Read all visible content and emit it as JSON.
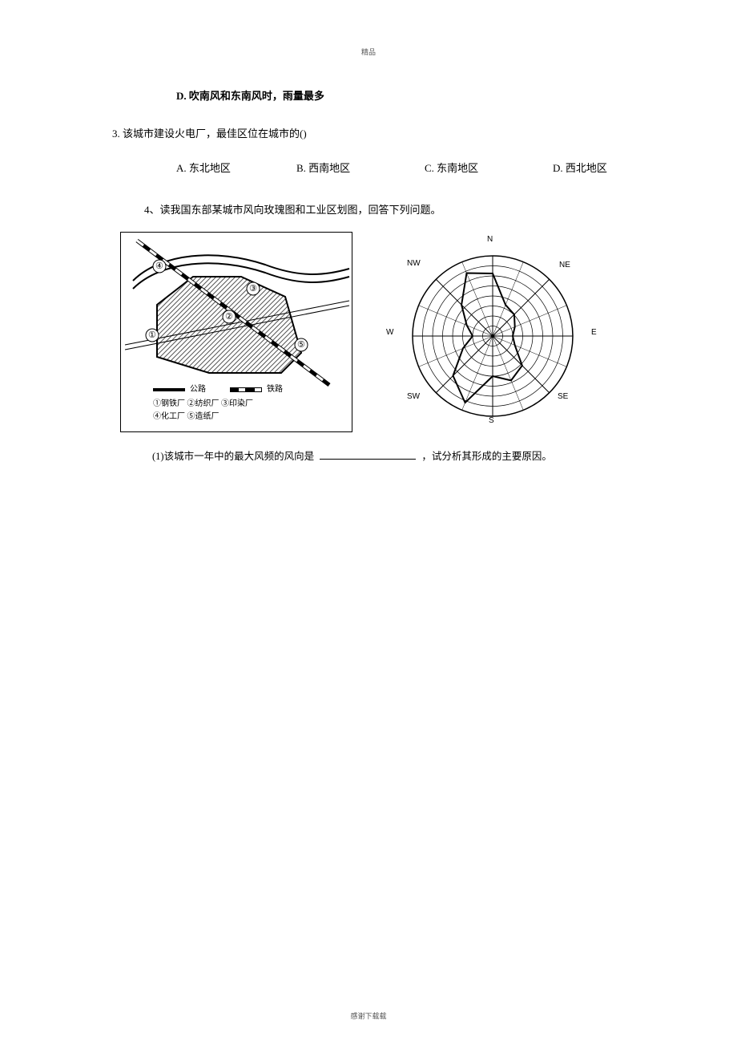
{
  "header": {
    "text": "精品"
  },
  "footer": {
    "text": "感谢下载载"
  },
  "lines": {
    "option_d_prev": "D. 吹南风和东南风时，雨量最多",
    "q3_stem": "3. 该城市建设火电厂，最佳区位在城市的()",
    "q3_opts": {
      "a": "A. 东北地区",
      "b": "B. 西南地区",
      "c": "C. 东南地区",
      "d": "D. 西北地区"
    },
    "q4_stem": "4、读我国东部某城市风向玫瑰图和工业区划图，回答下列问题。",
    "q4_sub1_a": "(1)该城市一年中的最大风频的风向是",
    "q4_sub1_b": "，试分析其形成的主要原因。"
  },
  "fig_left": {
    "legend_road": "公路",
    "legend_rail": "铁路",
    "legend_line2": "①钢铁厂 ②纺织厂 ③印染厂",
    "legend_line3": "④化工厂 ⑤造纸厂",
    "markers": {
      "m1": "①",
      "m2": "②",
      "m3": "③",
      "m4": "④",
      "m5": "⑤"
    },
    "shape_fill_hatch_color": "#666666",
    "shape_outline_color": "#000000"
  },
  "fig_right": {
    "labels": {
      "n": "N",
      "ne": "NE",
      "e": "E",
      "se": "SE",
      "s": "S",
      "sw": "SW",
      "w": "W",
      "nw": "NW"
    },
    "rings": 8,
    "spokes": 16,
    "ring_color": "#000000",
    "spoke_color": "#000000",
    "rose_line_color": "#000000",
    "rose_values_rel": {
      "N": 0.78,
      "NNE": 0.42,
      "NE": 0.38,
      "ENE": 0.3,
      "E": 0.25,
      "ESE": 0.3,
      "SE": 0.52,
      "SSE": 0.6,
      "S": 0.5,
      "SSW": 0.9,
      "SW": 0.7,
      "WSW": 0.4,
      "W": 0.25,
      "WNW": 0.35,
      "NW": 0.55,
      "NNW": 0.85
    }
  }
}
